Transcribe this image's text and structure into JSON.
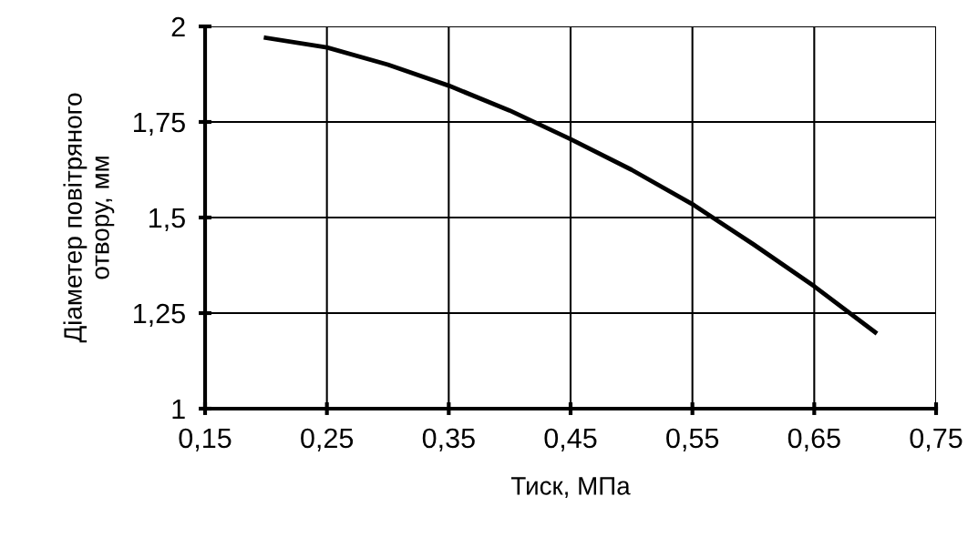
{
  "chart_data": {
    "type": "line",
    "xlabel": "Тиск, МПа",
    "ylabel": "Діаметер повітряного\nотвору, мм",
    "x": [
      0.2,
      0.25,
      0.3,
      0.35,
      0.4,
      0.45,
      0.5,
      0.55,
      0.6,
      0.65,
      0.7
    ],
    "series": [
      {
        "color": "#000000",
        "values": [
          1.97,
          1.945,
          1.9,
          1.845,
          1.78,
          1.705,
          1.625,
          1.535,
          1.43,
          1.32,
          1.2
        ]
      }
    ],
    "xlim": [
      0.15,
      0.75
    ],
    "ylim": [
      1,
      2
    ],
    "xticks": [
      {
        "value": 0.15,
        "label": "0,15"
      },
      {
        "value": 0.25,
        "label": "0,25"
      },
      {
        "value": 0.35,
        "label": "0,35"
      },
      {
        "value": 0.45,
        "label": "0,45"
      },
      {
        "value": 0.55,
        "label": "0,55"
      },
      {
        "value": 0.65,
        "label": "0,65"
      },
      {
        "value": 0.75,
        "label": "0,75"
      }
    ],
    "yticks": [
      {
        "value": 1,
        "label": "1"
      },
      {
        "value": 1.25,
        "label": "1,25"
      },
      {
        "value": 1.5,
        "label": "1,5"
      },
      {
        "value": 1.75,
        "label": "1,75"
      },
      {
        "value": 2,
        "label": "2"
      }
    ],
    "grid": true,
    "marker": "none",
    "line_style": "solid"
  }
}
